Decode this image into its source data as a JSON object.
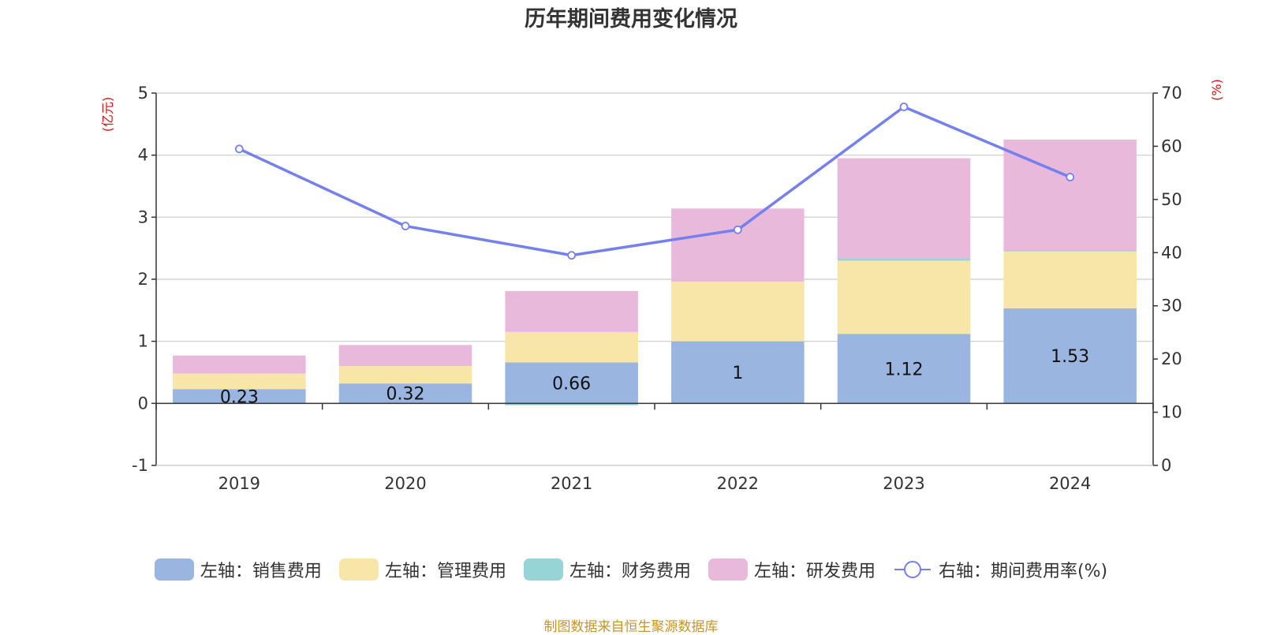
{
  "chart_data": {
    "type": "bar",
    "title": "历年期间费用变化情况",
    "categories": [
      "2019",
      "2020",
      "2021",
      "2022",
      "2023",
      "2024"
    ],
    "series": [
      {
        "name": "左轴：销售费用",
        "axis": "left",
        "color": "#9ab5e0",
        "values": [
          0.23,
          0.32,
          0.66,
          1.0,
          1.12,
          1.53
        ],
        "show_labels": true
      },
      {
        "name": "左轴：管理费用",
        "axis": "left",
        "color": "#f8e6a8",
        "values": [
          0.25,
          0.28,
          0.49,
          0.96,
          1.18,
          0.92
        ],
        "show_labels": false
      },
      {
        "name": "左轴：财务费用",
        "axis": "left",
        "color": "#96d4d6",
        "values": [
          0.0,
          0.0,
          -0.03,
          0.0,
          0.03,
          0.02
        ],
        "show_labels": false
      },
      {
        "name": "左轴：研发费用",
        "axis": "left",
        "color": "#e8b9da",
        "values": [
          0.29,
          0.34,
          0.66,
          1.18,
          1.62,
          1.78
        ],
        "show_labels": false
      }
    ],
    "line_series": {
      "name": "右轴：期间费用率(%)",
      "axis": "right",
      "color": "#7480ee",
      "values": [
        59.5,
        45.0,
        39.5,
        44.3,
        67.4,
        54.2
      ]
    },
    "data_labels": [
      "0.23",
      "0.32",
      "0.66",
      "1",
      "1.12",
      "1.53"
    ],
    "left_axis": {
      "label": "(亿元)",
      "ylim": [
        -1,
        5
      ],
      "ticks": [
        "-1",
        "0",
        "1",
        "2",
        "3",
        "4",
        "5"
      ]
    },
    "right_axis": {
      "label": "(%)",
      "ylim": [
        0,
        70
      ],
      "ticks": [
        "0",
        "10",
        "20",
        "30",
        "40",
        "50",
        "60",
        "70"
      ]
    },
    "grid": true,
    "legend_position": "bottom"
  },
  "footer": {
    "source": "制图数据来自恒生聚源数据库"
  }
}
